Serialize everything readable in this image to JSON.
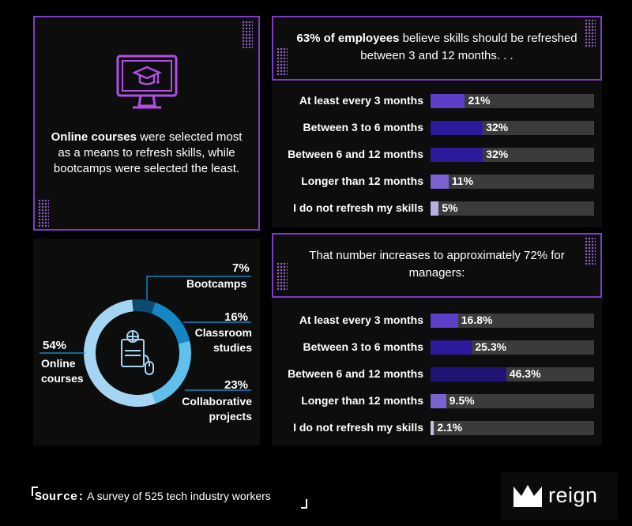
{
  "left_panel": {
    "bold_text": "Online courses",
    "text": " were selected most as a means to refresh skills, while bootcamps were selected the least.",
    "icon": "monitor-graduation-cap-icon"
  },
  "donut_icon": "certificate-mouse-icon",
  "chart_data": [
    {
      "type": "pie",
      "title": "",
      "categories": [
        "Online courses",
        "Bootcamps",
        "Classroom studies",
        "Collaborative projects"
      ],
      "values": [
        54,
        7,
        16,
        23
      ],
      "value_labels": [
        "54%",
        "7%",
        "16%",
        "23%"
      ],
      "colors": [
        "#a4d6f3",
        "#0d4c70",
        "#1387c4",
        "#5fc0ec"
      ]
    },
    {
      "type": "bar",
      "title_bold": "63% of employees",
      "title": " believe skills should be refreshed between 3 and 12 months. . .",
      "categories": [
        "At least every 3 months",
        "Between 3 to 6 months",
        "Between 6 and 12 months",
        "Longer than 12 months",
        "I do not refresh my skills"
      ],
      "values": [
        21,
        32,
        32,
        11,
        5
      ],
      "value_labels": [
        "21%",
        "32%",
        "32%",
        "11%",
        "5%"
      ],
      "xlim": [
        0,
        100
      ],
      "colors": [
        "#5b3fc9",
        "#2c1a9c",
        "#2c1a9c",
        "#7a62d1",
        "#b9aee6"
      ]
    },
    {
      "type": "bar",
      "title": "That number increases to approximately 72% for managers:",
      "categories": [
        "At least every 3 months",
        "Between 3 to 6 months",
        "Between 6 and 12 months",
        "Longer than 12 months",
        "I do not refresh my skills"
      ],
      "values": [
        16.8,
        25.3,
        46.3,
        9.5,
        2.1
      ],
      "value_labels": [
        "16.8%",
        "25.3%",
        "46.3%",
        "9.5%",
        "2.1%"
      ],
      "xlim": [
        0,
        100
      ],
      "colors": [
        "#5b3fc9",
        "#2c1a9c",
        "#1f1476",
        "#7a62d1",
        "#c4c0e6"
      ]
    }
  ],
  "source": {
    "key": "Source:",
    "text": "A survey of 525 tech industry workers"
  },
  "logo": {
    "text": "reign",
    "icon": "crown-icon"
  }
}
